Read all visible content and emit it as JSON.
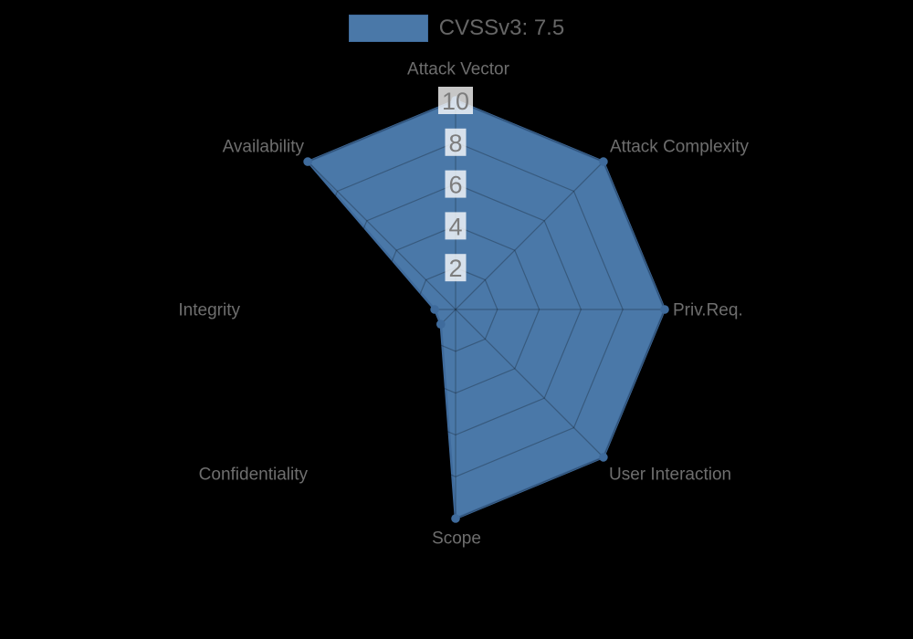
{
  "chart_data": {
    "type": "radar",
    "legend_label": "CVSSv3: 7.5",
    "legend_position": "top",
    "categories": [
      "Attack Vector",
      "Attack Complexity",
      "Priv.Req.",
      "User Interaction",
      "Scope",
      "Confidentiality",
      "Integrity",
      "Availability"
    ],
    "series": [
      {
        "name": "CVSSv3: 7.5",
        "values": [
          10,
          10,
          10,
          10,
          10,
          1,
          1,
          10
        ]
      }
    ],
    "rlim": [
      0,
      10
    ],
    "tick_values": [
      2,
      4,
      6,
      8,
      10
    ],
    "grid": "polygon-web"
  },
  "colors": {
    "background": "#000000",
    "series_fill": "#4a78a8",
    "series_border": "#3f6b9c",
    "marker": "#3f6b9c",
    "grid_line": "rgba(0,0,0,0.25)",
    "axis_label": "#6e6e6e",
    "tick_text": "#7d7d7d",
    "tick_backdrop": "rgba(255,255,255,0.78)",
    "legend_text": "#666666"
  }
}
